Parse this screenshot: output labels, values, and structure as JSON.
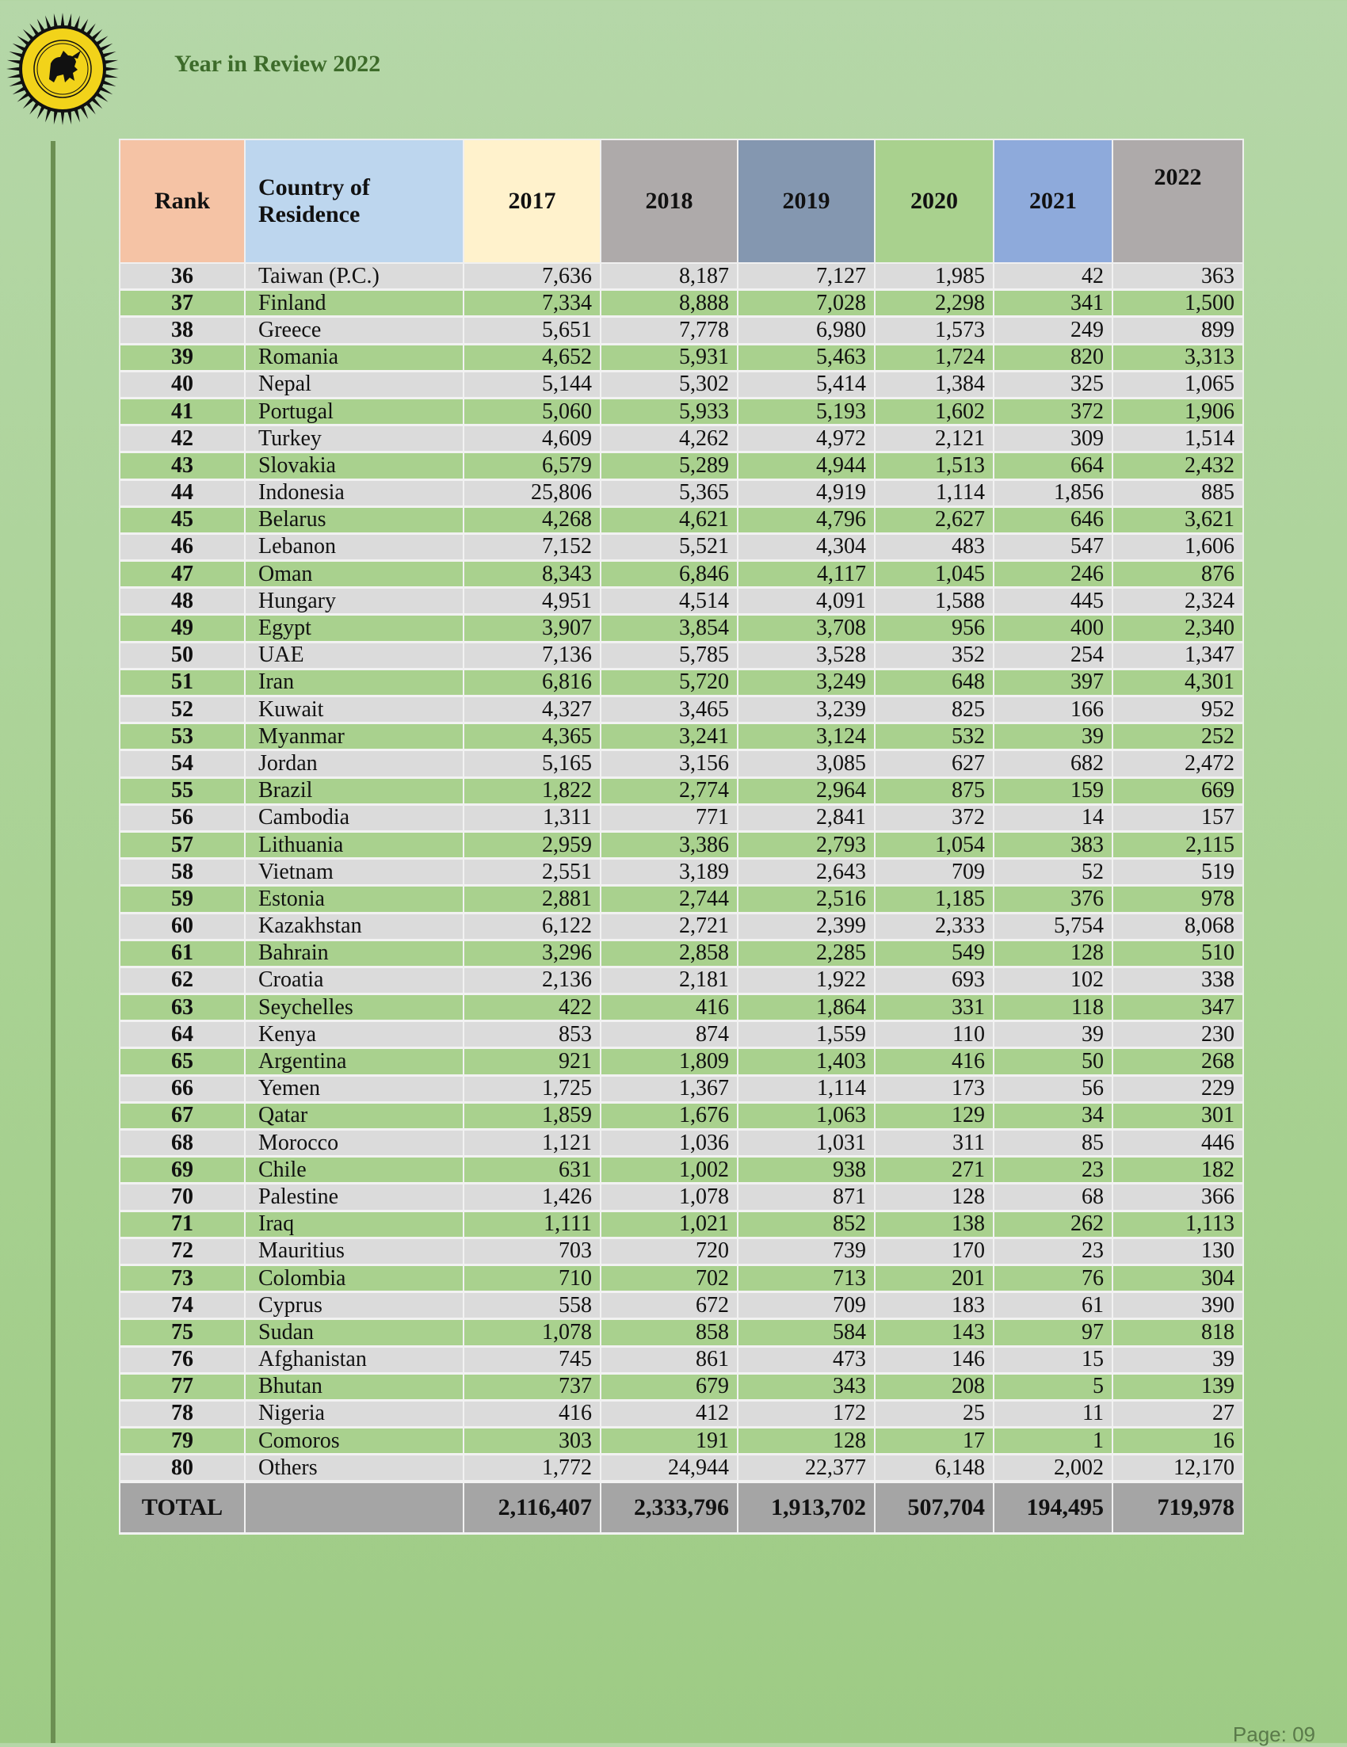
{
  "header": {
    "title": "Year in Review 2022",
    "logo": "sri-lanka-tourism-lion-emblem"
  },
  "table": {
    "columns": {
      "rank": "Rank",
      "country": "Country of Residence",
      "y2017": "2017",
      "y2018": "2018",
      "y2019": "2019",
      "y2020": "2020",
      "y2021": "2021",
      "y2022": "2022"
    },
    "rows": [
      {
        "rank": "36",
        "country": "Taiwan (P.C.)",
        "y2017": "7,636",
        "y2018": "8,187",
        "y2019": "7,127",
        "y2020": "1,985",
        "y2021": "42",
        "y2022": "363"
      },
      {
        "rank": "37",
        "country": "Finland",
        "y2017": "7,334",
        "y2018": "8,888",
        "y2019": "7,028",
        "y2020": "2,298",
        "y2021": "341",
        "y2022": "1,500"
      },
      {
        "rank": "38",
        "country": "Greece",
        "y2017": "5,651",
        "y2018": "7,778",
        "y2019": "6,980",
        "y2020": "1,573",
        "y2021": "249",
        "y2022": "899"
      },
      {
        "rank": "39",
        "country": "Romania",
        "y2017": "4,652",
        "y2018": "5,931",
        "y2019": "5,463",
        "y2020": "1,724",
        "y2021": "820",
        "y2022": "3,313"
      },
      {
        "rank": "40",
        "country": "Nepal",
        "y2017": "5,144",
        "y2018": "5,302",
        "y2019": "5,414",
        "y2020": "1,384",
        "y2021": "325",
        "y2022": "1,065"
      },
      {
        "rank": "41",
        "country": "Portugal",
        "y2017": "5,060",
        "y2018": "5,933",
        "y2019": "5,193",
        "y2020": "1,602",
        "y2021": "372",
        "y2022": "1,906"
      },
      {
        "rank": "42",
        "country": "Turkey",
        "y2017": "4,609",
        "y2018": "4,262",
        "y2019": "4,972",
        "y2020": "2,121",
        "y2021": "309",
        "y2022": "1,514"
      },
      {
        "rank": "43",
        "country": "Slovakia",
        "y2017": "6,579",
        "y2018": "5,289",
        "y2019": "4,944",
        "y2020": "1,513",
        "y2021": "664",
        "y2022": "2,432"
      },
      {
        "rank": "44",
        "country": "Indonesia",
        "y2017": "25,806",
        "y2018": "5,365",
        "y2019": "4,919",
        "y2020": "1,114",
        "y2021": "1,856",
        "y2022": "885"
      },
      {
        "rank": "45",
        "country": "Belarus",
        "y2017": "4,268",
        "y2018": "4,621",
        "y2019": "4,796",
        "y2020": "2,627",
        "y2021": "646",
        "y2022": "3,621"
      },
      {
        "rank": "46",
        "country": "Lebanon",
        "y2017": "7,152",
        "y2018": "5,521",
        "y2019": "4,304",
        "y2020": "483",
        "y2021": "547",
        "y2022": "1,606"
      },
      {
        "rank": "47",
        "country": "Oman",
        "y2017": "8,343",
        "y2018": "6,846",
        "y2019": "4,117",
        "y2020": "1,045",
        "y2021": "246",
        "y2022": "876"
      },
      {
        "rank": "48",
        "country": "Hungary",
        "y2017": "4,951",
        "y2018": "4,514",
        "y2019": "4,091",
        "y2020": "1,588",
        "y2021": "445",
        "y2022": "2,324"
      },
      {
        "rank": "49",
        "country": "Egypt",
        "y2017": "3,907",
        "y2018": "3,854",
        "y2019": "3,708",
        "y2020": "956",
        "y2021": "400",
        "y2022": "2,340"
      },
      {
        "rank": "50",
        "country": "UAE",
        "y2017": "7,136",
        "y2018": "5,785",
        "y2019": "3,528",
        "y2020": "352",
        "y2021": "254",
        "y2022": "1,347"
      },
      {
        "rank": "51",
        "country": "Iran",
        "y2017": "6,816",
        "y2018": "5,720",
        "y2019": "3,249",
        "y2020": "648",
        "y2021": "397",
        "y2022": "4,301"
      },
      {
        "rank": "52",
        "country": "Kuwait",
        "y2017": "4,327",
        "y2018": "3,465",
        "y2019": "3,239",
        "y2020": "825",
        "y2021": "166",
        "y2022": "952"
      },
      {
        "rank": "53",
        "country": "Myanmar",
        "y2017": "4,365",
        "y2018": "3,241",
        "y2019": "3,124",
        "y2020": "532",
        "y2021": "39",
        "y2022": "252"
      },
      {
        "rank": "54",
        "country": "Jordan",
        "y2017": "5,165",
        "y2018": "3,156",
        "y2019": "3,085",
        "y2020": "627",
        "y2021": "682",
        "y2022": "2,472"
      },
      {
        "rank": "55",
        "country": "Brazil",
        "y2017": "1,822",
        "y2018": "2,774",
        "y2019": "2,964",
        "y2020": "875",
        "y2021": "159",
        "y2022": "669"
      },
      {
        "rank": "56",
        "country": "Cambodia",
        "y2017": "1,311",
        "y2018": "771",
        "y2019": "2,841",
        "y2020": "372",
        "y2021": "14",
        "y2022": "157"
      },
      {
        "rank": "57",
        "country": "Lithuania",
        "y2017": "2,959",
        "y2018": "3,386",
        "y2019": "2,793",
        "y2020": "1,054",
        "y2021": "383",
        "y2022": "2,115"
      },
      {
        "rank": "58",
        "country": "Vietnam",
        "y2017": "2,551",
        "y2018": "3,189",
        "y2019": "2,643",
        "y2020": "709",
        "y2021": "52",
        "y2022": "519"
      },
      {
        "rank": "59",
        "country": "Estonia",
        "y2017": "2,881",
        "y2018": "2,744",
        "y2019": "2,516",
        "y2020": "1,185",
        "y2021": "376",
        "y2022": "978"
      },
      {
        "rank": "60",
        "country": "Kazakhstan",
        "y2017": "6,122",
        "y2018": "2,721",
        "y2019": "2,399",
        "y2020": "2,333",
        "y2021": "5,754",
        "y2022": "8,068"
      },
      {
        "rank": "61",
        "country": "Bahrain",
        "y2017": "3,296",
        "y2018": "2,858",
        "y2019": "2,285",
        "y2020": "549",
        "y2021": "128",
        "y2022": "510"
      },
      {
        "rank": "62",
        "country": "Croatia",
        "y2017": "2,136",
        "y2018": "2,181",
        "y2019": "1,922",
        "y2020": "693",
        "y2021": "102",
        "y2022": "338"
      },
      {
        "rank": "63",
        "country": "Seychelles",
        "y2017": "422",
        "y2018": "416",
        "y2019": "1,864",
        "y2020": "331",
        "y2021": "118",
        "y2022": "347"
      },
      {
        "rank": "64",
        "country": "Kenya",
        "y2017": "853",
        "y2018": "874",
        "y2019": "1,559",
        "y2020": "110",
        "y2021": "39",
        "y2022": "230"
      },
      {
        "rank": "65",
        "country": "Argentina",
        "y2017": "921",
        "y2018": "1,809",
        "y2019": "1,403",
        "y2020": "416",
        "y2021": "50",
        "y2022": "268"
      },
      {
        "rank": "66",
        "country": "Yemen",
        "y2017": "1,725",
        "y2018": "1,367",
        "y2019": "1,114",
        "y2020": "173",
        "y2021": "56",
        "y2022": "229"
      },
      {
        "rank": "67",
        "country": "Qatar",
        "y2017": "1,859",
        "y2018": "1,676",
        "y2019": "1,063",
        "y2020": "129",
        "y2021": "34",
        "y2022": "301"
      },
      {
        "rank": "68",
        "country": "Morocco",
        "y2017": "1,121",
        "y2018": "1,036",
        "y2019": "1,031",
        "y2020": "311",
        "y2021": "85",
        "y2022": "446"
      },
      {
        "rank": "69",
        "country": "Chile",
        "y2017": "631",
        "y2018": "1,002",
        "y2019": "938",
        "y2020": "271",
        "y2021": "23",
        "y2022": "182"
      },
      {
        "rank": "70",
        "country": "Palestine",
        "y2017": "1,426",
        "y2018": "1,078",
        "y2019": "871",
        "y2020": "128",
        "y2021": "68",
        "y2022": "366"
      },
      {
        "rank": "71",
        "country": "Iraq",
        "y2017": "1,111",
        "y2018": "1,021",
        "y2019": "852",
        "y2020": "138",
        "y2021": "262",
        "y2022": "1,113"
      },
      {
        "rank": "72",
        "country": "Mauritius",
        "y2017": "703",
        "y2018": "720",
        "y2019": "739",
        "y2020": "170",
        "y2021": "23",
        "y2022": "130"
      },
      {
        "rank": "73",
        "country": "Colombia",
        "y2017": "710",
        "y2018": "702",
        "y2019": "713",
        "y2020": "201",
        "y2021": "76",
        "y2022": "304"
      },
      {
        "rank": "74",
        "country": "Cyprus",
        "y2017": "558",
        "y2018": "672",
        "y2019": "709",
        "y2020": "183",
        "y2021": "61",
        "y2022": "390"
      },
      {
        "rank": "75",
        "country": "Sudan",
        "y2017": "1,078",
        "y2018": "858",
        "y2019": "584",
        "y2020": "143",
        "y2021": "97",
        "y2022": "818"
      },
      {
        "rank": "76",
        "country": "Afghanistan",
        "y2017": "745",
        "y2018": "861",
        "y2019": "473",
        "y2020": "146",
        "y2021": "15",
        "y2022": "39"
      },
      {
        "rank": "77",
        "country": "Bhutan",
        "y2017": "737",
        "y2018": "679",
        "y2019": "343",
        "y2020": "208",
        "y2021": "5",
        "y2022": "139"
      },
      {
        "rank": "78",
        "country": "Nigeria",
        "y2017": "416",
        "y2018": "412",
        "y2019": "172",
        "y2020": "25",
        "y2021": "11",
        "y2022": "27"
      },
      {
        "rank": "79",
        "country": "Comoros",
        "y2017": "303",
        "y2018": "191",
        "y2019": "128",
        "y2020": "17",
        "y2021": "1",
        "y2022": "16"
      },
      {
        "rank": "80",
        "country": "Others",
        "y2017": "1,772",
        "y2018": "24,944",
        "y2019": "22,377",
        "y2020": "6,148",
        "y2021": "2,002",
        "y2022": "12,170"
      }
    ],
    "total": {
      "label": "TOTAL",
      "y2017": "2,116,407",
      "y2018": "2,333,796",
      "y2019": "1,913,702",
      "y2020": "507,704",
      "y2021": "194,495",
      "y2022": "719,978"
    }
  },
  "footer": {
    "page": "Page: 09"
  },
  "colors": {
    "background": "#a9d293",
    "title_text": "#3d6b2a",
    "row_gray": "#dbdbdb",
    "row_green": "#a9d18e",
    "header_rank": "#f5c3a5",
    "header_country": "#bdd6ee",
    "header_2017": "#fff2cc",
    "header_2018": "#aeaaaa",
    "header_2019": "#8497b0",
    "header_2020": "#a9d18e",
    "header_2021": "#8eaadb",
    "header_2022": "#aeaaaa",
    "total_row": "#a5a5a5"
  }
}
